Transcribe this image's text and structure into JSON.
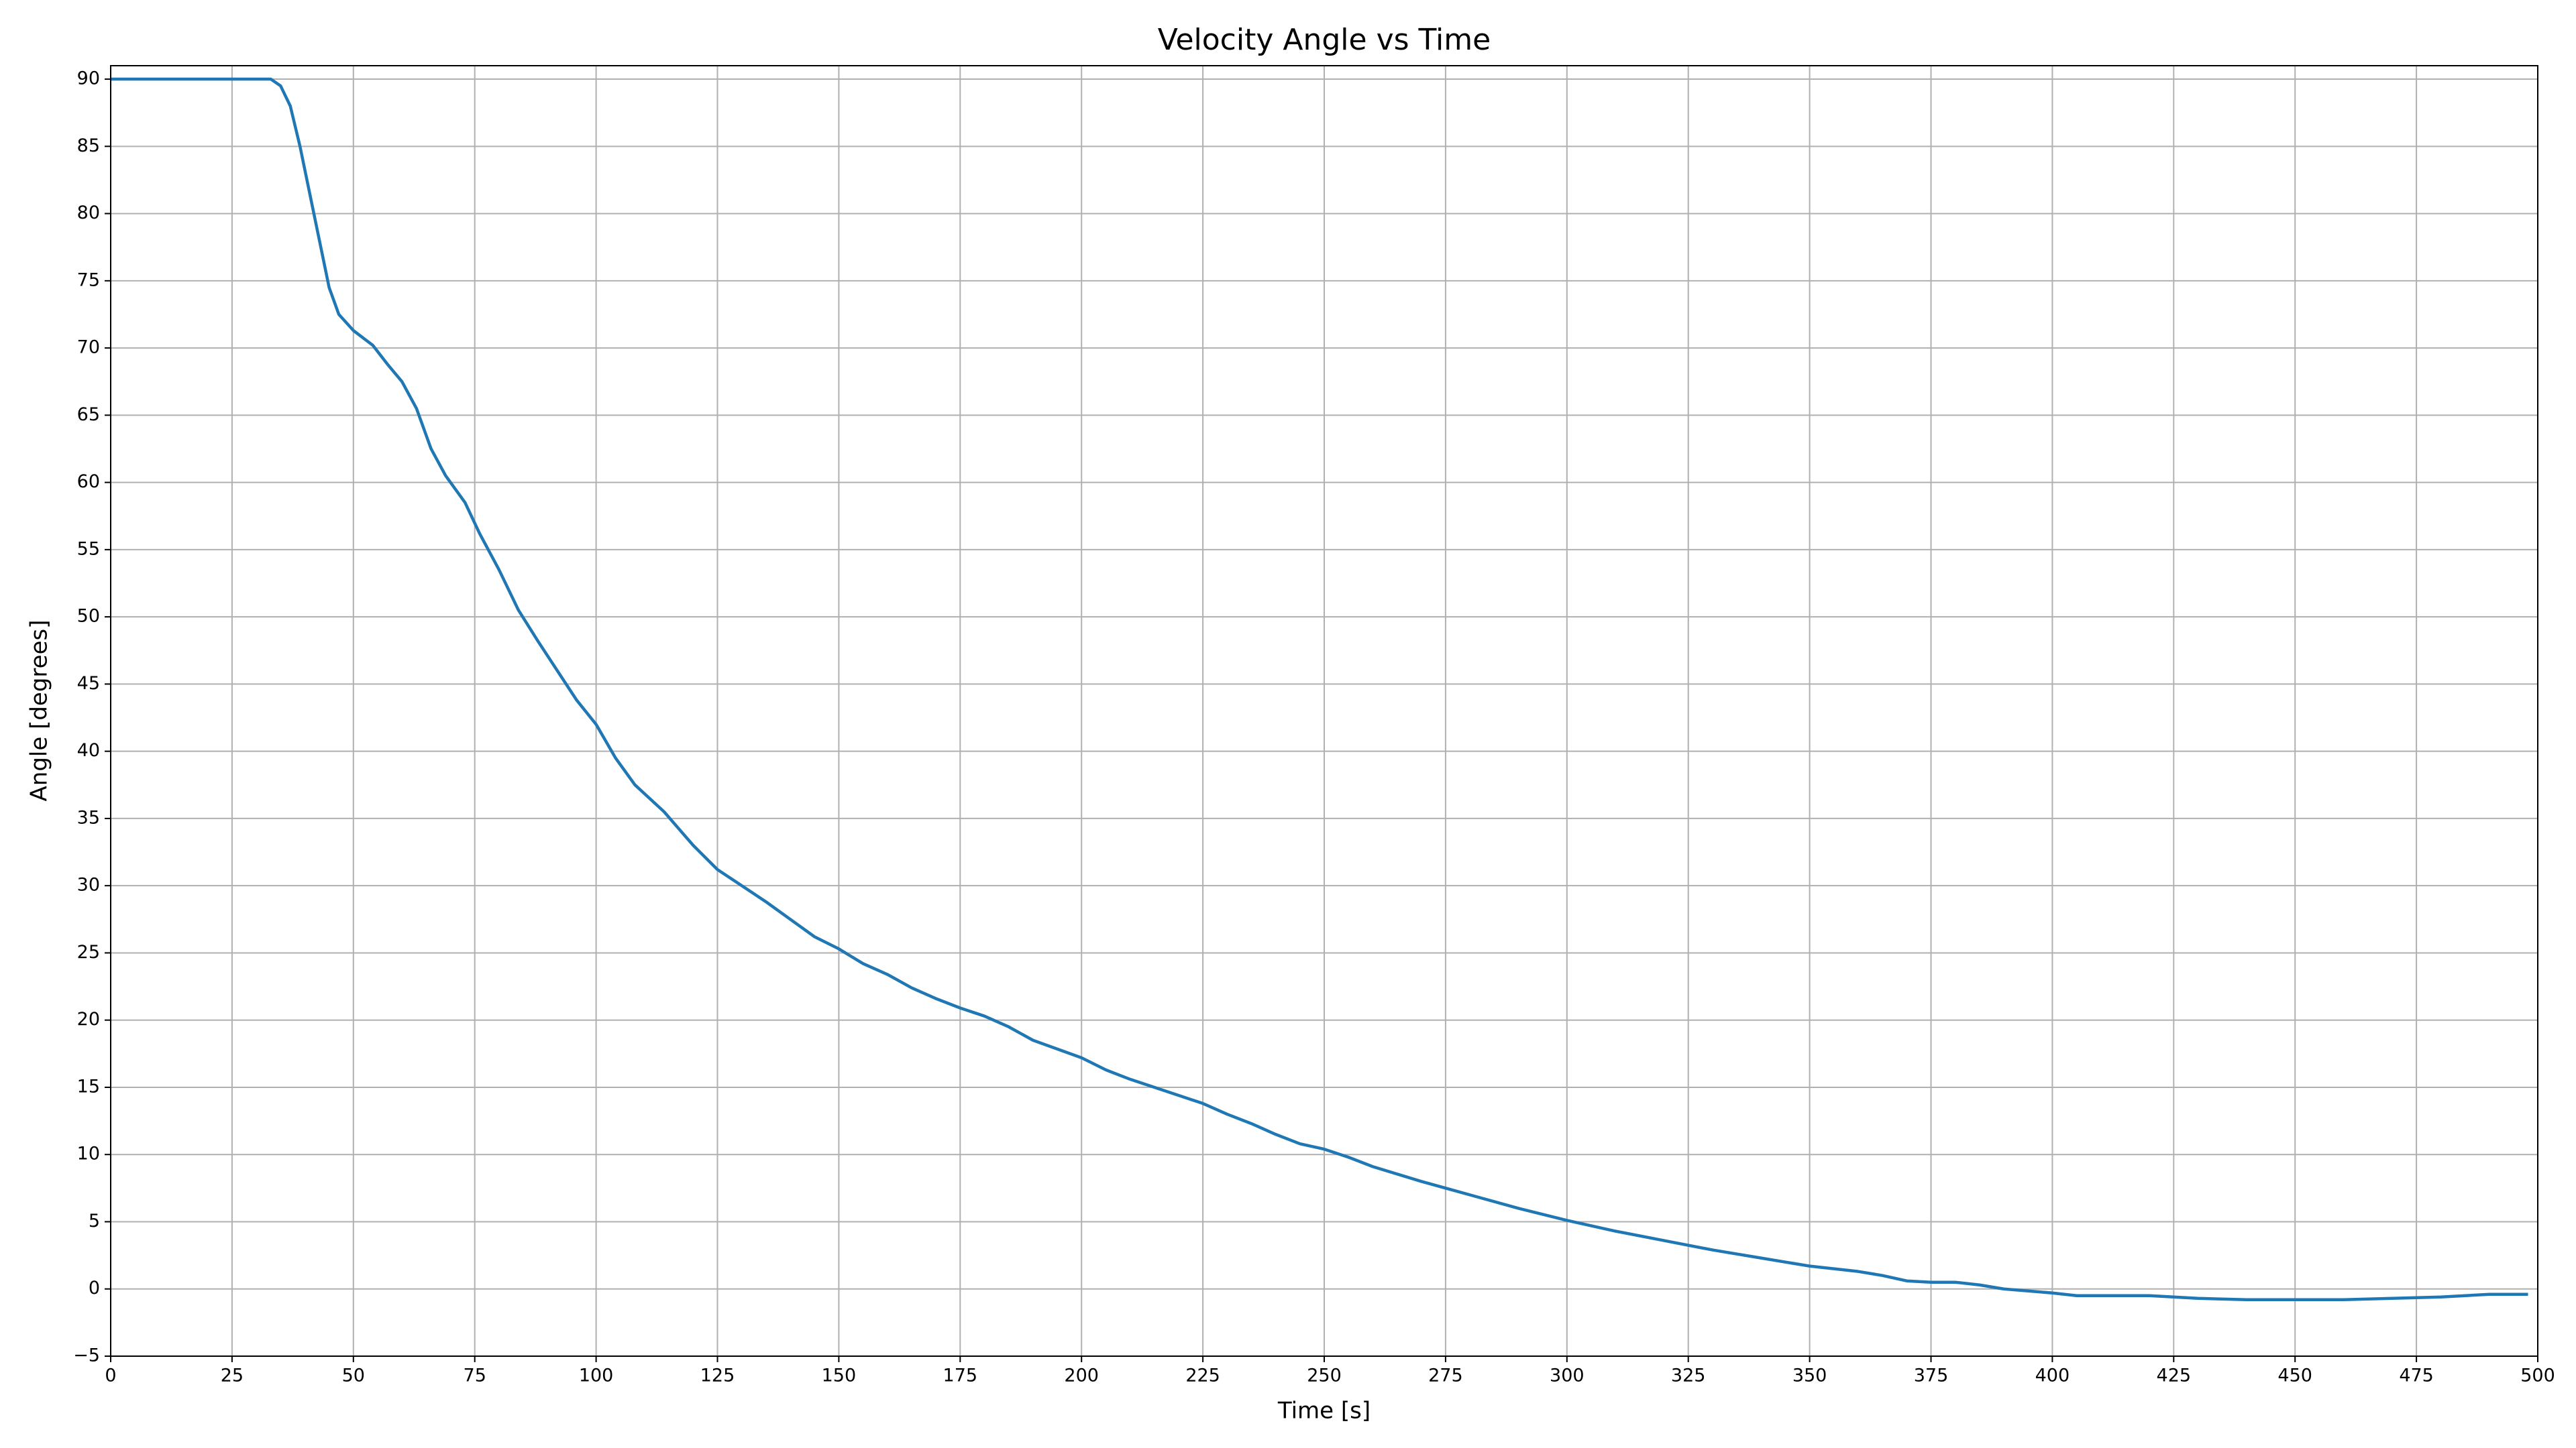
{
  "chart_data": {
    "type": "line",
    "title": "Velocity Angle vs Time",
    "xlabel": "Time [s]",
    "ylabel": "Angle [degrees]",
    "x": [
      0,
      33,
      35,
      37,
      39,
      41,
      43,
      45,
      47,
      50,
      54,
      57,
      60,
      63,
      66,
      69,
      73,
      76,
      80,
      84,
      88,
      92,
      96,
      100,
      104,
      108,
      114,
      120,
      125,
      130,
      135,
      140,
      145,
      150,
      155,
      160,
      165,
      170,
      175,
      180,
      185,
      190,
      200,
      205,
      210,
      220,
      225,
      230,
      235,
      240,
      245,
      250,
      255,
      260,
      270,
      280,
      290,
      300,
      310,
      320,
      330,
      340,
      350,
      360,
      365,
      370,
      375,
      380,
      385,
      390,
      400,
      405,
      420,
      430,
      440,
      450,
      460,
      470,
      480,
      490,
      498
    ],
    "series": [
      {
        "name": "Velocity Angle",
        "color": "#1f77b4",
        "values": [
          90,
          90,
          89.5,
          88,
          85,
          81.5,
          78,
          74.5,
          72.5,
          71.3,
          70.2,
          68.8,
          67.5,
          65.5,
          62.5,
          60.5,
          58.5,
          56.2,
          53.5,
          50.5,
          48.2,
          46,
          43.8,
          42,
          39.5,
          37.5,
          35.5,
          33,
          31.2,
          30,
          28.8,
          27.5,
          26.2,
          25.3,
          24.2,
          23.4,
          22.4,
          21.6,
          20.9,
          20.3,
          19.5,
          18.5,
          17.2,
          16.3,
          15.6,
          14.4,
          13.8,
          13,
          12.3,
          11.5,
          10.8,
          10.4,
          9.8,
          9.1,
          8,
          7,
          6,
          5.1,
          4.3,
          3.6,
          2.9,
          2.3,
          1.7,
          1.3,
          1,
          0.6,
          0.5,
          0.5,
          0.3,
          0,
          -0.3,
          -0.5,
          -0.5,
          -0.7,
          -0.8,
          -0.8,
          -0.8,
          -0.7,
          -0.6,
          -0.4,
          -0.4
        ]
      }
    ],
    "xlim": [
      0,
      500
    ],
    "ylim": [
      -5,
      91
    ],
    "xticks": [
      0,
      25,
      50,
      75,
      100,
      125,
      150,
      175,
      200,
      225,
      250,
      275,
      300,
      325,
      350,
      375,
      400,
      425,
      450,
      475,
      500
    ],
    "yticks": [
      {
        "value": -5,
        "label": "−5"
      },
      0,
      5,
      10,
      15,
      20,
      25,
      30,
      35,
      40,
      45,
      50,
      55,
      60,
      65,
      70,
      75,
      80,
      85,
      90
    ],
    "grid": true
  }
}
